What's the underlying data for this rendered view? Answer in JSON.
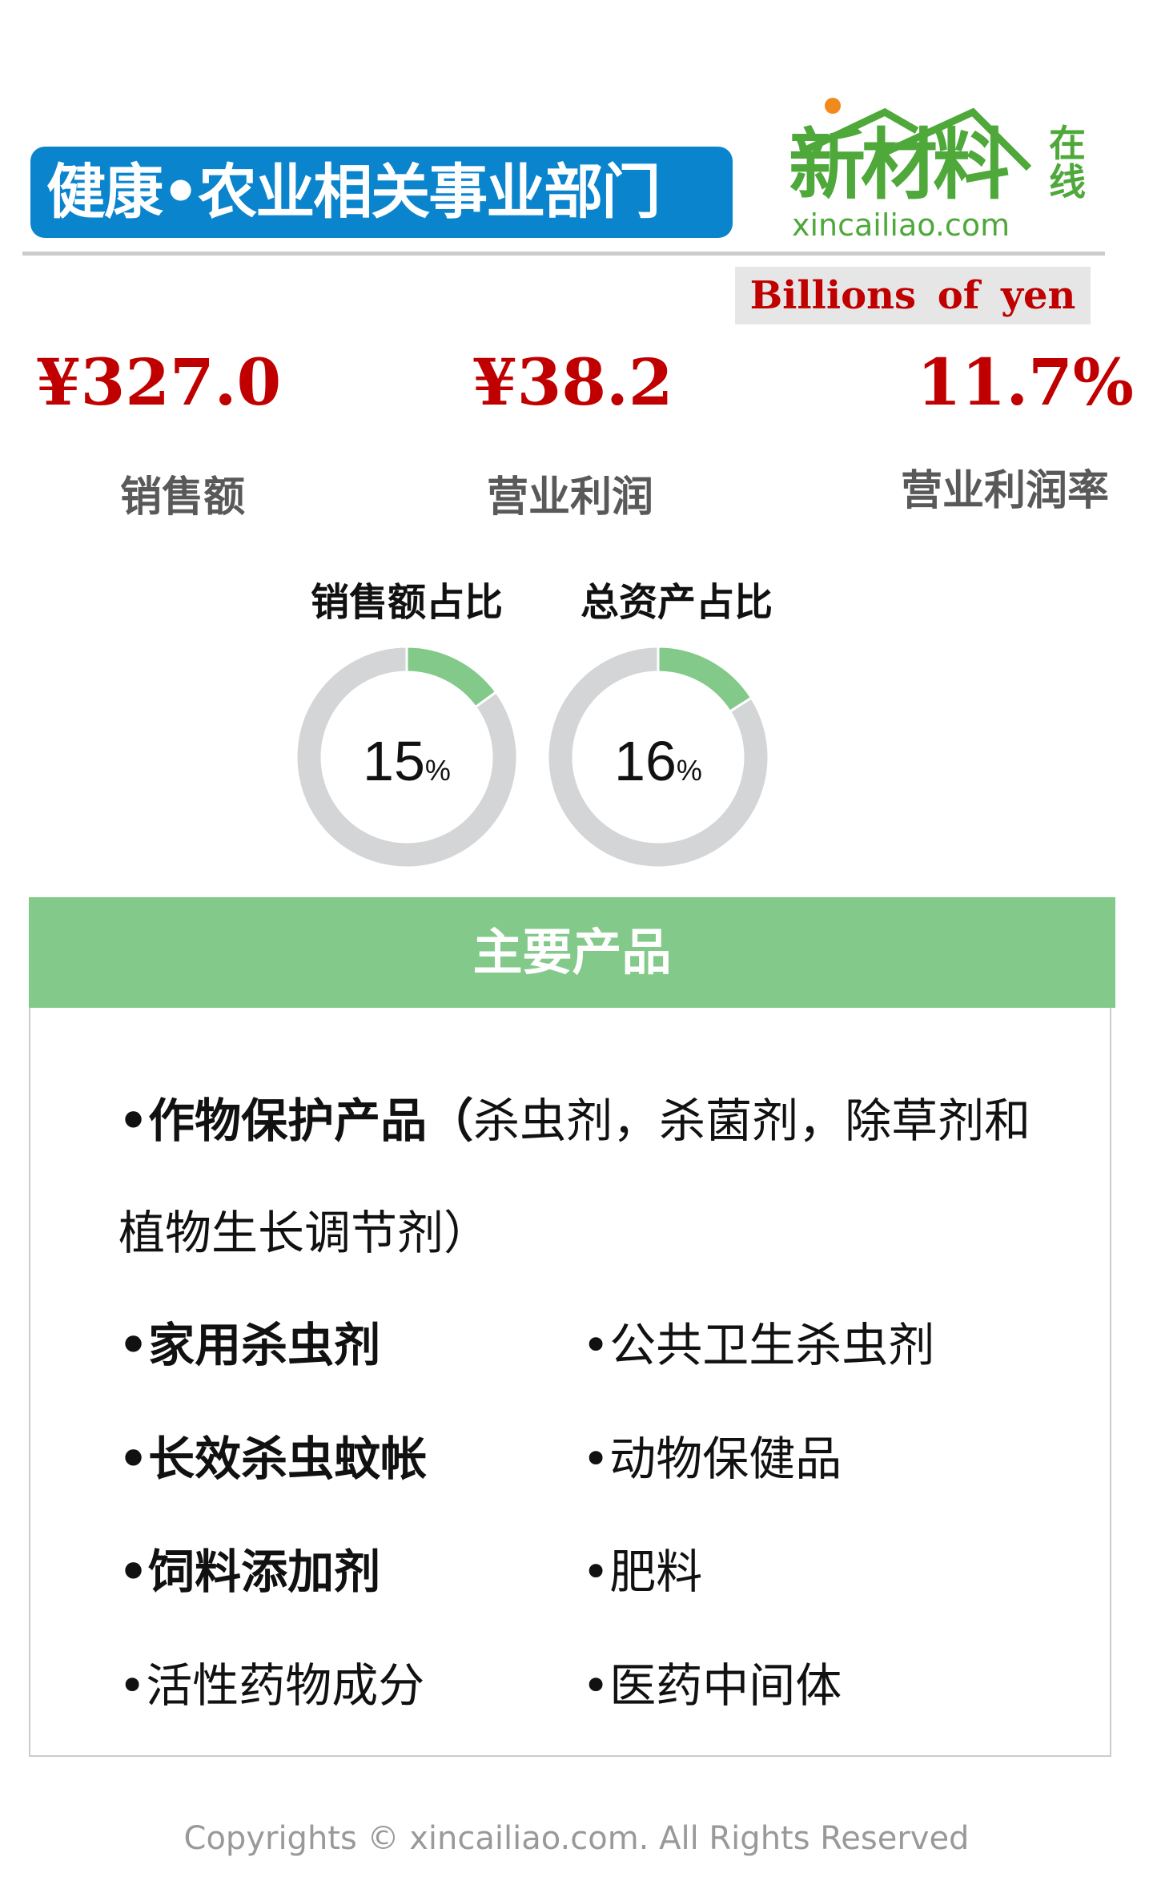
{
  "header": {
    "title": "健康•农业相关事业部门",
    "logo_cn": "新材料",
    "logo_side": "在线",
    "logo_url": "xincailiao.com",
    "title_bg": "#0a84cc",
    "brand_green": "#4ea83a"
  },
  "unit": "Billions of yen",
  "metrics": [
    {
      "value": "¥327.0",
      "label": "销售额"
    },
    {
      "value": "¥38.2",
      "label": "营业利润"
    },
    {
      "value": "11.7%",
      "label": "营业利润率"
    }
  ],
  "value_color": "#c00000",
  "chart_data": [
    {
      "type": "pie",
      "subtype": "donut",
      "title": "销售额占比",
      "values": [
        15,
        85
      ],
      "label": "15",
      "unit": "%",
      "colors": [
        "#82c98a",
        "#d4d5d7"
      ]
    },
    {
      "type": "pie",
      "subtype": "donut",
      "title": "总资产占比",
      "values": [
        16,
        84
      ],
      "label": "16",
      "unit": "%",
      "colors": [
        "#82c98a",
        "#d4d5d7"
      ]
    }
  ],
  "products": {
    "heading": "主要产品",
    "heading_bg": "#82c98a",
    "crop_bold": "•作物保护产品（",
    "crop_line1": "杀虫剂，杀菌剂，除草剂和",
    "crop_line2": "植物生长调节剂）",
    "rows": [
      {
        "left": "•家用杀虫剂",
        "left_bold": true,
        "right": "•公共卫生杀虫剂"
      },
      {
        "left": "•长效杀虫蚊帐",
        "left_bold": true,
        "right": "•动物保健品"
      },
      {
        "left": "•饲料添加剂",
        "left_bold": true,
        "right": "•肥料"
      },
      {
        "left": "•活性药物成分",
        "left_bold": false,
        "right": "•医药中间体"
      }
    ]
  },
  "watermark": "xincailiao.com",
  "copyright": "Copyrights © xincailiao.com. All Rights Reserved"
}
